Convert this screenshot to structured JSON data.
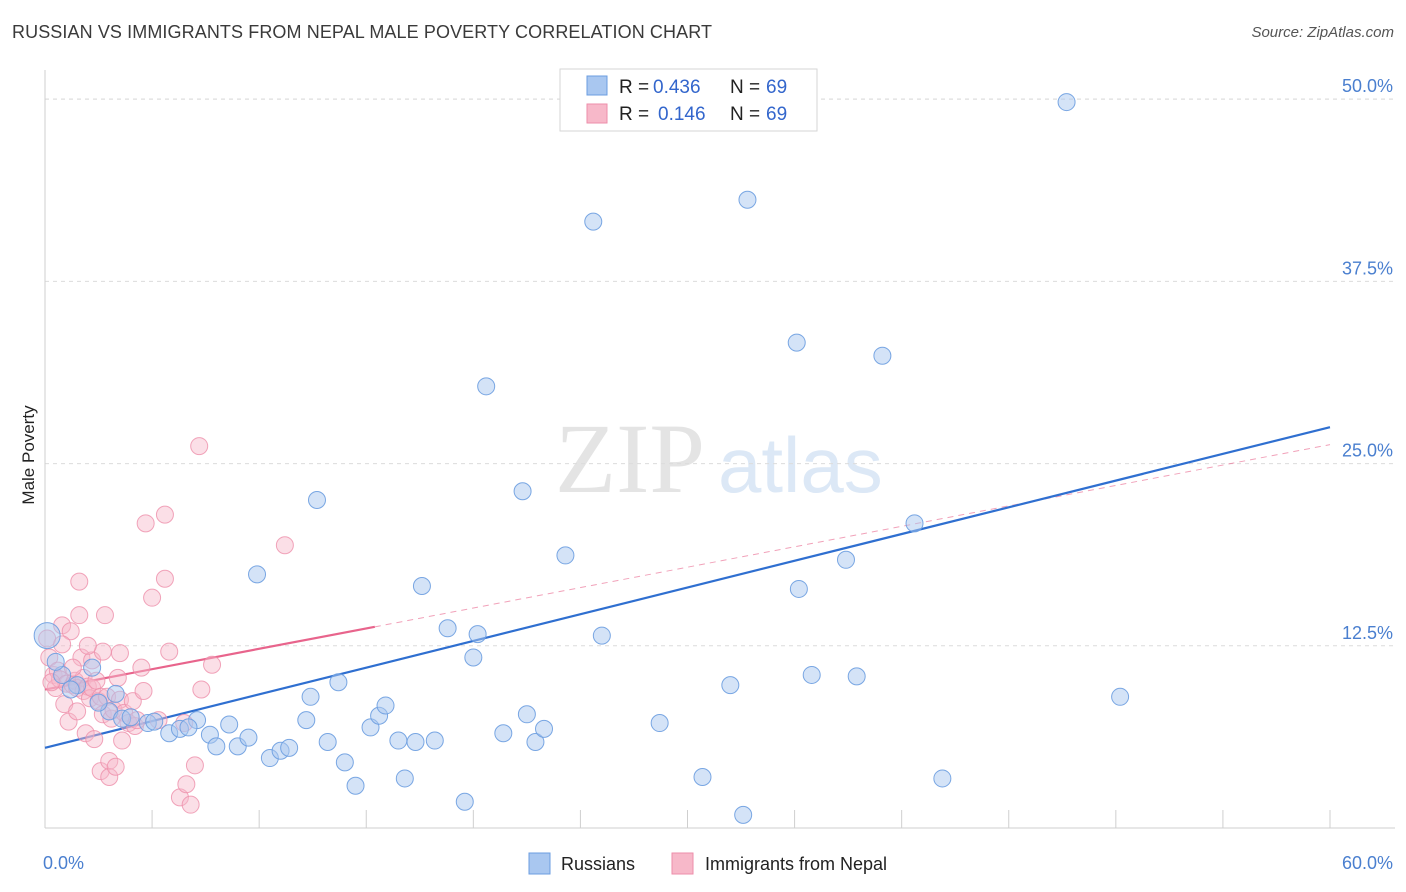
{
  "title": "RUSSIAN VS IMMIGRANTS FROM NEPAL MALE POVERTY CORRELATION CHART",
  "source": "Source: ZipAtlas.com",
  "watermark": {
    "part1": "ZIP",
    "part2": "atlas"
  },
  "colors": {
    "russians_fill": "#a9c7f0",
    "russians_stroke": "#6b9de0",
    "russians_line": "#2f6fd0",
    "nepal_fill": "#f7b8c9",
    "nepal_stroke": "#ee8eaa",
    "nepal_line": "#e8648c",
    "grid": "#dcdcdc",
    "axis_text": "#4a7fcf"
  },
  "legend": {
    "rows": [
      {
        "r_label": "R =",
        "r_value": "0.436",
        "n_label": "N =",
        "n_value": "69"
      },
      {
        "r_label": "R =",
        "r_value": "0.146",
        "n_label": "N =",
        "n_value": "69"
      }
    ]
  },
  "chart_data": {
    "type": "scatter",
    "title": "RUSSIAN VS IMMIGRANTS FROM NEPAL MALE POVERTY CORRELATION CHART",
    "xlabel": "",
    "ylabel": "Male Poverty",
    "xlim": [
      0,
      60
    ],
    "ylim": [
      0,
      52
    ],
    "x_tick_labels": [
      "0.0%",
      "60.0%"
    ],
    "y_ticks": [
      12.5,
      25.0,
      37.5,
      50.0
    ],
    "y_tick_labels": [
      "12.5%",
      "25.0%",
      "37.5%",
      "50.0%"
    ],
    "series": [
      {
        "name": "Russians",
        "trend": {
          "x": [
            0,
            60
          ],
          "y": [
            5.5,
            27.5
          ],
          "style": "solid"
        },
        "points": [
          [
            0.1,
            13.2
          ],
          [
            0.8,
            10.5
          ],
          [
            1.5,
            9.8
          ],
          [
            2.2,
            11.0
          ],
          [
            3.0,
            8.0
          ],
          [
            3.6,
            7.5
          ],
          [
            4.0,
            7.6
          ],
          [
            4.8,
            7.2
          ],
          [
            5.1,
            7.3
          ],
          [
            5.8,
            6.5
          ],
          [
            6.3,
            6.8
          ],
          [
            7.1,
            7.4
          ],
          [
            7.7,
            6.4
          ],
          [
            8.0,
            5.6
          ],
          [
            8.6,
            7.1
          ],
          [
            9.0,
            5.6
          ],
          [
            9.5,
            6.2
          ],
          [
            9.9,
            17.4
          ],
          [
            10.5,
            4.8
          ],
          [
            11.0,
            5.3
          ],
          [
            11.4,
            5.5
          ],
          [
            12.2,
            7.4
          ],
          [
            12.4,
            9.0
          ],
          [
            12.7,
            22.5
          ],
          [
            13.2,
            5.9
          ],
          [
            13.7,
            10.0
          ],
          [
            14.0,
            4.5
          ],
          [
            14.5,
            2.9
          ],
          [
            15.2,
            6.9
          ],
          [
            15.6,
            7.7
          ],
          [
            15.9,
            8.4
          ],
          [
            16.5,
            6.0
          ],
          [
            16.8,
            3.4
          ],
          [
            17.3,
            5.9
          ],
          [
            17.6,
            16.6
          ],
          [
            18.2,
            6.0
          ],
          [
            18.8,
            13.7
          ],
          [
            19.6,
            1.8
          ],
          [
            20.0,
            11.7
          ],
          [
            20.2,
            13.3
          ],
          [
            20.6,
            30.3
          ],
          [
            21.4,
            6.5
          ],
          [
            22.3,
            23.1
          ],
          [
            22.5,
            7.8
          ],
          [
            22.9,
            5.9
          ],
          [
            23.3,
            6.8
          ],
          [
            24.3,
            18.7
          ],
          [
            25.6,
            41.6
          ],
          [
            26.0,
            13.2
          ],
          [
            28.7,
            7.2
          ],
          [
            30.7,
            3.5
          ],
          [
            32.0,
            9.8
          ],
          [
            32.6,
            0.9
          ],
          [
            32.8,
            43.1
          ],
          [
            35.1,
            33.3
          ],
          [
            35.2,
            16.4
          ],
          [
            35.8,
            10.5
          ],
          [
            37.4,
            18.4
          ],
          [
            37.9,
            10.4
          ],
          [
            39.1,
            32.4
          ],
          [
            40.6,
            20.9
          ],
          [
            41.9,
            3.4
          ],
          [
            47.7,
            49.8
          ],
          [
            50.2,
            9.0
          ],
          [
            1.2,
            9.5
          ],
          [
            2.5,
            8.6
          ],
          [
            3.3,
            9.2
          ],
          [
            6.7,
            6.9
          ],
          [
            0.5,
            11.4
          ]
        ]
      },
      {
        "name": "Immigrants from Nepal",
        "trend": {
          "x": [
            0,
            15.4
          ],
          "y": [
            9.5,
            13.8
          ],
          "style": "solid",
          "extension": {
            "x": [
              15.4,
              60
            ],
            "y": [
              13.8,
              26.3
            ],
            "style": "dashed"
          }
        },
        "points": [
          [
            0.1,
            13.0
          ],
          [
            0.2,
            11.7
          ],
          [
            0.4,
            10.5
          ],
          [
            0.5,
            9.6
          ],
          [
            0.6,
            10.8
          ],
          [
            0.7,
            10.2
          ],
          [
            0.8,
            13.9
          ],
          [
            0.9,
            8.5
          ],
          [
            1.0,
            9.9
          ],
          [
            1.1,
            7.3
          ],
          [
            1.2,
            13.5
          ],
          [
            1.3,
            9.8
          ],
          [
            1.4,
            10.1
          ],
          [
            1.5,
            9.6
          ],
          [
            1.5,
            8.0
          ],
          [
            1.6,
            16.9
          ],
          [
            1.6,
            14.6
          ],
          [
            1.7,
            11.7
          ],
          [
            1.8,
            10.3
          ],
          [
            1.8,
            9.4
          ],
          [
            1.9,
            6.5
          ],
          [
            2.0,
            9.7
          ],
          [
            2.1,
            8.9
          ],
          [
            2.2,
            11.5
          ],
          [
            2.2,
            9.6
          ],
          [
            2.3,
            6.1
          ],
          [
            2.4,
            10.1
          ],
          [
            2.5,
            8.7
          ],
          [
            2.6,
            3.9
          ],
          [
            2.6,
            9.0
          ],
          [
            2.7,
            12.1
          ],
          [
            2.7,
            7.8
          ],
          [
            2.8,
            14.6
          ],
          [
            2.9,
            9.0
          ],
          [
            3.0,
            4.6
          ],
          [
            3.0,
            3.5
          ],
          [
            3.1,
            7.5
          ],
          [
            3.2,
            8.1
          ],
          [
            3.3,
            4.2
          ],
          [
            3.4,
            10.3
          ],
          [
            3.5,
            8.8
          ],
          [
            3.6,
            6.0
          ],
          [
            3.7,
            7.9
          ],
          [
            3.9,
            7.2
          ],
          [
            4.1,
            8.7
          ],
          [
            4.2,
            7.0
          ],
          [
            4.3,
            7.4
          ],
          [
            4.5,
            11.0
          ],
          [
            4.6,
            9.4
          ],
          [
            4.7,
            20.9
          ],
          [
            5.0,
            15.8
          ],
          [
            5.3,
            7.4
          ],
          [
            5.6,
            21.5
          ],
          [
            5.6,
            17.1
          ],
          [
            5.8,
            12.1
          ],
          [
            6.3,
            2.1
          ],
          [
            6.5,
            7.2
          ],
          [
            6.6,
            3.0
          ],
          [
            6.8,
            1.6
          ],
          [
            7.0,
            4.3
          ],
          [
            7.2,
            26.2
          ],
          [
            7.3,
            9.5
          ],
          [
            7.8,
            11.2
          ],
          [
            11.2,
            19.4
          ],
          [
            0.3,
            10.0
          ],
          [
            1.3,
            11.0
          ],
          [
            2.0,
            12.5
          ],
          [
            0.8,
            12.6
          ],
          [
            3.5,
            12.0
          ]
        ]
      }
    ],
    "legend": [
      "Russians",
      "Immigrants from Nepal"
    ]
  }
}
